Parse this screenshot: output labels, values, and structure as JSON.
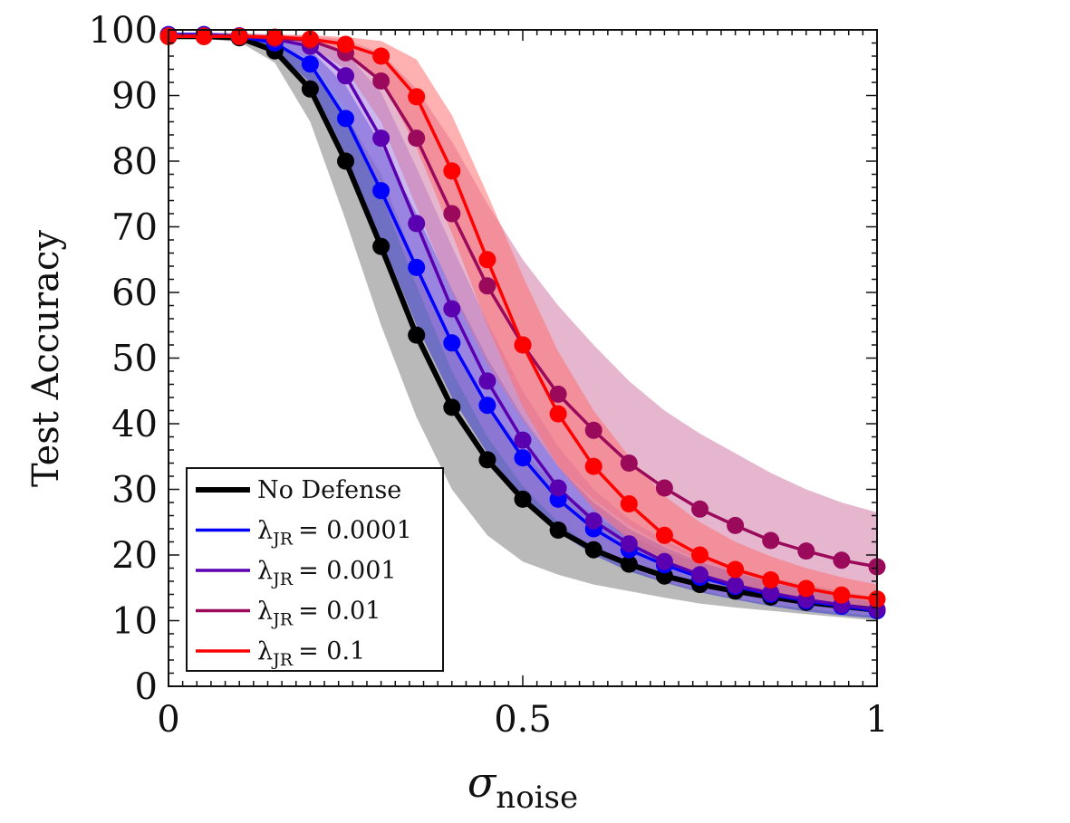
{
  "chart_data": {
    "type": "line",
    "xlabel": "σ",
    "xlabel_sub": "noise",
    "ylabel": "Test Accuracy",
    "xlim": [
      0,
      1
    ],
    "ylim": [
      0,
      100
    ],
    "x_ticks": [
      0,
      0.5,
      1
    ],
    "x_tick_labels": [
      "0",
      "0.5",
      "1"
    ],
    "y_ticks": [
      0,
      10,
      20,
      30,
      40,
      50,
      60,
      70,
      80,
      90,
      100
    ],
    "y_tick_labels": [
      "0",
      "10",
      "20",
      "30",
      "40",
      "50",
      "60",
      "70",
      "80",
      "90",
      "100"
    ],
    "grid": false,
    "legend_position": "bottom-left",
    "x": [
      0,
      0.05,
      0.1,
      0.15,
      0.2,
      0.25,
      0.3,
      0.35,
      0.4,
      0.45,
      0.5,
      0.55,
      0.6,
      0.65,
      0.7,
      0.75,
      0.8,
      0.85,
      0.9,
      0.95,
      1.0
    ],
    "series": [
      {
        "name": "No Defense",
        "color": "#000000",
        "band_color": "#808080",
        "values": [
          99,
          99,
          98.8,
          96.8,
          91,
          80,
          67,
          53.5,
          42.5,
          34.5,
          28.5,
          23.8,
          20.8,
          18.6,
          16.8,
          15.5,
          14.5,
          13.6,
          12.8,
          12.2,
          11.6
        ],
        "lower": [
          98.6,
          98.6,
          98.2,
          95,
          86,
          71,
          55,
          41,
          30,
          23,
          19,
          17,
          15.5,
          14.5,
          13.5,
          12.6,
          12,
          11.5,
          11,
          10.5,
          10
        ],
        "upper": [
          99.4,
          99.4,
          99.2,
          98.2,
          94.5,
          87,
          78,
          64,
          52,
          43,
          36,
          30,
          26,
          23,
          20.5,
          18.8,
          17.5,
          16.5,
          15.5,
          14.5,
          13.5
        ]
      },
      {
        "name": "λ_JR = 0.0001",
        "legend_main": "λ",
        "legend_sub": "JR",
        "legend_value": "= 0.0001",
        "color": "#0000ff",
        "band_color": "#3333cc",
        "values": [
          99.3,
          99.3,
          99,
          98,
          94.8,
          86.5,
          75.5,
          63.8,
          52.3,
          42.8,
          34.8,
          28.5,
          24,
          20.8,
          18.5,
          16.6,
          15.2,
          14,
          13,
          12.2,
          11.5
        ],
        "lower": [
          98.9,
          98.9,
          98.5,
          96.8,
          92,
          81,
          68,
          55,
          44,
          35.5,
          28.5,
          23.5,
          20,
          17.5,
          15.8,
          14.3,
          13.2,
          12.2,
          11.4,
          10.8,
          10.3
        ],
        "upper": [
          99.6,
          99.6,
          99.4,
          99,
          97,
          91.5,
          82.5,
          72,
          60.5,
          50,
          41,
          33.5,
          28,
          24,
          21.2,
          19,
          17.3,
          15.8,
          14.6,
          13.6,
          12.8
        ]
      },
      {
        "name": "λ_JR = 0.001",
        "legend_main": "λ",
        "legend_sub": "JR",
        "legend_value": "= 0.001",
        "color": "#5a00b0",
        "band_color": "#a27be0",
        "values": [
          99.2,
          99.2,
          99.1,
          98.6,
          97.5,
          93,
          83.5,
          70.5,
          57.5,
          46.5,
          37.5,
          30.2,
          25.2,
          21.7,
          19,
          17,
          15.4,
          14.2,
          13.2,
          12.4,
          11.7
        ],
        "lower": [
          98.8,
          98.8,
          98.6,
          97.8,
          95.5,
          88,
          75,
          61,
          48,
          38,
          30.5,
          25,
          21,
          18,
          16,
          14.6,
          13.4,
          12.5,
          11.8,
          11.2,
          10.7
        ],
        "upper": [
          99.6,
          99.6,
          99.5,
          99.3,
          98.8,
          96.5,
          90.5,
          79,
          67,
          55.5,
          45,
          36.5,
          30,
          25.5,
          22.2,
          19.7,
          17.7,
          16.1,
          14.8,
          13.8,
          12.9
        ]
      },
      {
        "name": "λ_JR = 0.01",
        "legend_main": "λ",
        "legend_sub": "JR",
        "legend_value": "= 0.01",
        "color": "#9b0a5a",
        "band_color": "#d07aa6",
        "values": [
          99.1,
          99.1,
          99,
          98.8,
          98.4,
          96.5,
          92.2,
          83.5,
          72,
          61,
          52,
          44.5,
          39,
          34,
          30.2,
          27,
          24.5,
          22.2,
          20.6,
          19.2,
          18.2
        ],
        "lower": [
          98.7,
          98.7,
          98.6,
          98.3,
          97.5,
          94,
          86,
          73,
          60,
          49,
          40.5,
          33.5,
          28.5,
          24.5,
          21.5,
          19.2,
          17.4,
          16,
          14.8,
          13.8,
          13
        ],
        "upper": [
          99.5,
          99.5,
          99.4,
          99.3,
          99.1,
          98.5,
          96.5,
          91,
          83,
          73.5,
          65,
          58,
          52,
          46.5,
          42,
          38.5,
          35.5,
          32.5,
          30,
          28,
          26.5
        ]
      },
      {
        "name": "λ_JR = 0.1",
        "legend_main": "λ",
        "legend_sub": "JR",
        "legend_value": "= 0.1",
        "color": "#ff0000",
        "band_color": "#ff6f6f",
        "values": [
          99,
          99,
          99,
          98.9,
          98.6,
          97.8,
          96,
          89.8,
          78.5,
          65,
          52,
          41.5,
          33.5,
          27.8,
          23,
          20,
          17.8,
          16.2,
          14.9,
          13.9,
          13.3
        ],
        "lower": [
          98.6,
          98.6,
          98.6,
          98.5,
          98,
          96.5,
          92.5,
          82,
          69,
          55,
          42.5,
          33.5,
          27,
          22.3,
          18.8,
          16.5,
          14.8,
          13.5,
          12.6,
          11.8,
          11.3
        ],
        "upper": [
          99.4,
          99.4,
          99.4,
          99.3,
          99.2,
          98.9,
          98.3,
          95.5,
          87,
          75,
          62.5,
          51,
          42,
          35,
          29,
          25,
          22,
          19.8,
          18,
          16.6,
          15.5
        ]
      }
    ],
    "legend_order": [
      "No Defense",
      "λ_JR = 0.0001",
      "λ_JR = 0.001",
      "λ_JR = 0.01",
      "λ_JR = 0.1"
    ]
  }
}
